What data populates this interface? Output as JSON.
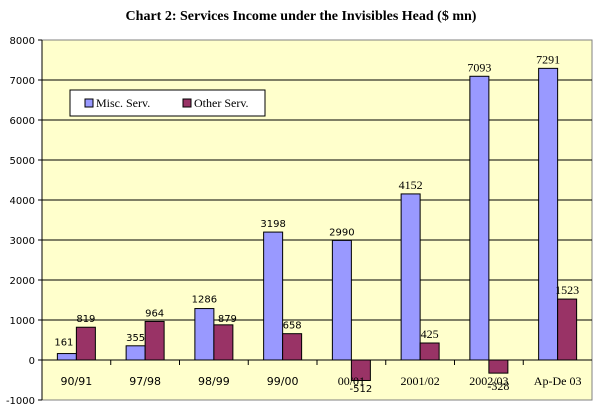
{
  "chart_data": {
    "type": "bar",
    "title": "Chart 2: Services Income under the Invisibles Head ($ mn)",
    "xlabel": "",
    "ylabel": "",
    "categories": [
      "90/91",
      "97/98",
      "98/99",
      "99/00",
      "00/01",
      "2001/02",
      "2002/03",
      "Ap-De 03"
    ],
    "series": [
      {
        "name": "Misc. Serv.",
        "color": "#9999ff",
        "values": [
          161,
          355,
          1286,
          3198,
          2990,
          4152,
          7093,
          7291
        ]
      },
      {
        "name": "Other Serv.",
        "color": "#993366",
        "values": [
          819,
          964,
          879,
          658,
          -512,
          425,
          -328,
          1523
        ]
      }
    ],
    "ylim": [
      -1000,
      8000
    ],
    "yticks": [
      -1000,
      0,
      1000,
      2000,
      3000,
      4000,
      5000,
      6000,
      7000,
      8000
    ],
    "grid": true,
    "legend": "top-left",
    "plot_background": "#ffffcc"
  }
}
